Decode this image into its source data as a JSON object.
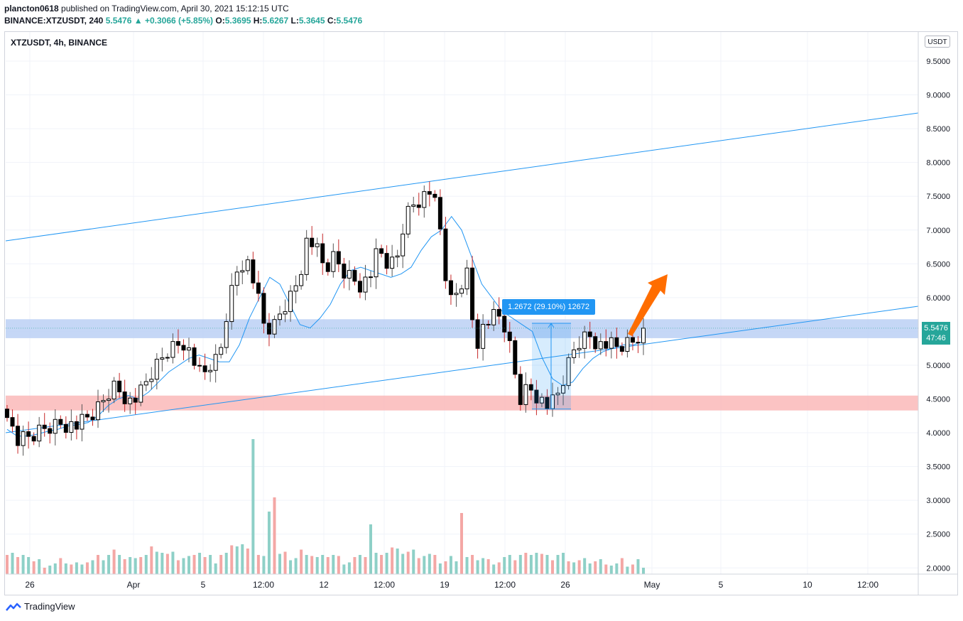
{
  "header": {
    "line1_user": "plancton0618",
    "line1_rest": " published on TradingView.com, April 30, 2021 15:12:15 UTC",
    "symbol_line": "BINANCE:XTZUSDT, 240",
    "last": "5.5476",
    "change": "▲ +0.3066 (+5.85%)",
    "o_label": "O:",
    "o": "5.3695",
    "h_label": "H:",
    "h": "5.6267",
    "l_label": "L:",
    "l": "5.3645",
    "c_label": "C:",
    "c": "5.5476"
  },
  "chart_title": "XTZUSDT, 4h, BINANCE",
  "currency": "USDT",
  "price_badge": {
    "price": "5.5476",
    "countdown": "47:46"
  },
  "measure_label": "1.2672 (29.10%) 12672",
  "footer": {
    "brand": "TradingView"
  },
  "colors": {
    "up": "#26a69a",
    "down": "#ef5350",
    "ma": "#2196f3",
    "channel": "#2196f3",
    "zone_blue": "#bbd0f5",
    "zone_red": "#fbbcbc",
    "arrow": "#ff6d00"
  },
  "chart_data": {
    "type": "candlestick",
    "title": "XTZUSDT, 4h, BINANCE",
    "ylim": [
      1.8,
      9.8
    ],
    "y_ticks": [
      "9.5000",
      "9.0000",
      "8.5000",
      "8.0000",
      "7.5000",
      "7.0000",
      "6.5000",
      "6.0000",
      "5.5000",
      "5.0000",
      "4.5000",
      "4.0000",
      "3.5000",
      "3.0000",
      "2.5000",
      "2.0000"
    ],
    "x_ticks": [
      "26",
      "Apr",
      "5",
      "12:00",
      "12",
      "12:00",
      "19",
      "12:00",
      "26",
      "May",
      "5",
      "10",
      "12:00"
    ],
    "close_path": [
      4.35,
      3.85,
      3.9,
      3.95,
      4.05,
      4.1,
      4.15,
      4.12,
      4.1,
      4.2,
      4.3,
      4.5,
      4.7,
      4.6,
      4.45,
      4.55,
      4.8,
      5.0,
      5.2,
      5.3,
      5.35,
      5.1,
      4.8,
      5.0,
      5.1,
      5.9,
      6.4,
      6.6,
      6.2,
      5.6,
      5.5,
      5.8,
      6.0,
      6.3,
      6.9,
      6.7,
      6.4,
      6.6,
      6.4,
      6.3,
      6.2,
      6.3,
      6.7,
      6.5,
      6.5,
      7.2,
      7.4,
      7.5,
      7.6,
      7.0,
      5.9,
      6.1,
      6.4,
      5.3,
      5.6,
      5.7,
      5.7,
      5.2,
      4.5,
      4.7,
      4.55,
      4.4,
      4.45,
      4.8,
      5.2,
      5.4,
      5.45,
      5.3,
      5.3,
      5.25,
      5.3,
      5.35,
      5.55
    ],
    "ma_path": [
      4.05,
      3.95,
      3.95,
      3.98,
      4.02,
      4.05,
      4.1,
      4.12,
      4.15,
      4.25,
      4.4,
      4.5,
      4.55,
      4.5,
      4.6,
      4.75,
      4.9,
      5.0,
      5.1,
      5.15,
      5.1,
      5.05,
      5.05,
      5.3,
      5.7,
      6.0,
      6.3,
      6.2,
      5.9,
      5.6,
      5.55,
      5.7,
      5.9,
      6.2,
      6.4,
      6.45,
      6.4,
      6.35,
      6.3,
      6.35,
      6.45,
      6.7,
      6.9,
      7.0,
      7.2,
      7.0,
      6.6,
      6.2,
      6.0,
      5.8,
      5.7,
      5.6,
      5.5,
      5.1,
      4.8,
      4.7,
      4.75,
      4.95,
      5.1,
      5.2,
      5.25,
      5.3,
      5.3,
      5.35
    ],
    "volume_profile": [
      6,
      4,
      5,
      3,
      2,
      2,
      3,
      2,
      3,
      3,
      4,
      5,
      6,
      4,
      3,
      5,
      7,
      6,
      5,
      4,
      4,
      6,
      4,
      3,
      5,
      9,
      8,
      6,
      5,
      4,
      5,
      5,
      4,
      6,
      5,
      4,
      5,
      4,
      3,
      4,
      5,
      5,
      6,
      7,
      6,
      6,
      5,
      5,
      4,
      3,
      4,
      3,
      4,
      4,
      3,
      3,
      4,
      4,
      5,
      6,
      5,
      4,
      5,
      4,
      3,
      3,
      3,
      3,
      2,
      3,
      2,
      3,
      2
    ],
    "annotations": [
      "ascending channel upper line",
      "ascending channel lower line",
      "blue resistance zone 5.40–5.68",
      "red support zone 4.33–4.55",
      "measure +1.2672 (29.10%)",
      "orange arrow up"
    ]
  }
}
